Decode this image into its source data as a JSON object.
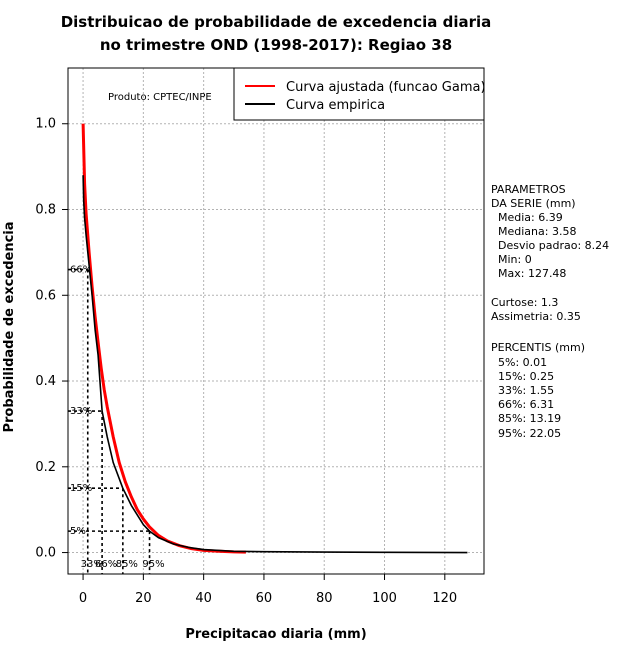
{
  "chart_data": {
    "type": "line",
    "title_line1": "Distribuicao de probabilidade de excedencia diaria",
    "title_line2": "no trimestre OND (1998-2017): Regiao 38",
    "xlabel": "Precipitacao diaria (mm)",
    "ylabel": "Probabilidade de excedencia",
    "xlim": [
      -5,
      133
    ],
    "ylim": [
      -0.05,
      1.13
    ],
    "x_ticks": [
      0,
      20,
      40,
      60,
      80,
      100,
      120
    ],
    "y_ticks": [
      0.0,
      0.2,
      0.4,
      0.6,
      0.8,
      1.0
    ],
    "x_tick_labels": [
      "0",
      "20",
      "40",
      "60",
      "80",
      "100",
      "120"
    ],
    "y_tick_labels": [
      "0.0",
      "0.2",
      "0.4",
      "0.6",
      "0.8",
      "1.0"
    ],
    "grid": true,
    "credit": "Produto: CPTEC/INPE",
    "legend": {
      "position": "top-right",
      "entries": [
        {
          "label": "Curva ajustada (funcao Gama)",
          "color": "#ff0000"
        },
        {
          "label": "Curva empirica",
          "color": "#000000"
        }
      ]
    },
    "series": [
      {
        "name": "Curva ajustada (funcao Gama)",
        "color": "#ff0000",
        "x": [
          0,
          0.5,
          1,
          2,
          3,
          4,
          5,
          6,
          7,
          8,
          10,
          12,
          14,
          16,
          18,
          20,
          22,
          25,
          28,
          32,
          36,
          40,
          45,
          50,
          54
        ],
        "y": [
          1.0,
          0.86,
          0.79,
          0.7,
          0.62,
          0.55,
          0.49,
          0.43,
          0.38,
          0.34,
          0.27,
          0.21,
          0.165,
          0.13,
          0.1,
          0.078,
          0.06,
          0.04,
          0.027,
          0.016,
          0.009,
          0.005,
          0.003,
          0.0015,
          0.001
        ]
      },
      {
        "name": "Curva empirica",
        "color": "#000000",
        "x": [
          0,
          0.2,
          0.5,
          1,
          2,
          3,
          4,
          5,
          6.31,
          8,
          10,
          13.19,
          16,
          20,
          22.05,
          25,
          30,
          35,
          40,
          50,
          60,
          80,
          100,
          127.48
        ],
        "y": [
          0.88,
          0.82,
          0.78,
          0.74,
          0.67,
          0.6,
          0.52,
          0.46,
          0.33,
          0.27,
          0.21,
          0.15,
          0.11,
          0.065,
          0.05,
          0.035,
          0.02,
          0.012,
          0.007,
          0.003,
          0.002,
          0.001,
          0.0005,
          0.0
        ]
      }
    ],
    "percentile_markers": [
      {
        "label": "66%",
        "x": 1.55,
        "y": 0.66
      },
      {
        "label": "33%",
        "x": 6.31,
        "y": 0.33
      },
      {
        "label": "15%",
        "x": 13.19,
        "y": 0.15
      },
      {
        "label": "5%",
        "x": 22.05,
        "y": 0.05
      }
    ],
    "percentile_x_labels": [
      {
        "label": "33%",
        "x": 1.55
      },
      {
        "label": "66%",
        "x": 6.31
      },
      {
        "label": "85%",
        "x": 13.19
      },
      {
        "label": "95%",
        "x": 22.05
      }
    ]
  },
  "stats": {
    "params_title_1": "PARAMETROS",
    "params_title_2": "DA SERIE (mm)",
    "media": "Media: 6.39",
    "mediana": "Mediana: 3.58",
    "desvio": "Desvio padrao: 8.24",
    "min": "Min: 0",
    "max": "Max: 127.48",
    "curtose": "Curtose: 1.3",
    "assimetria": "Assimetria: 0.35",
    "percentis_title": "PERCENTIS (mm)",
    "p5": "5%: 0.01",
    "p15": "15%: 0.25",
    "p33": "33%: 1.55",
    "p66": "66%: 6.31",
    "p85": "85%: 13.19",
    "p95": "95%: 22.05"
  }
}
